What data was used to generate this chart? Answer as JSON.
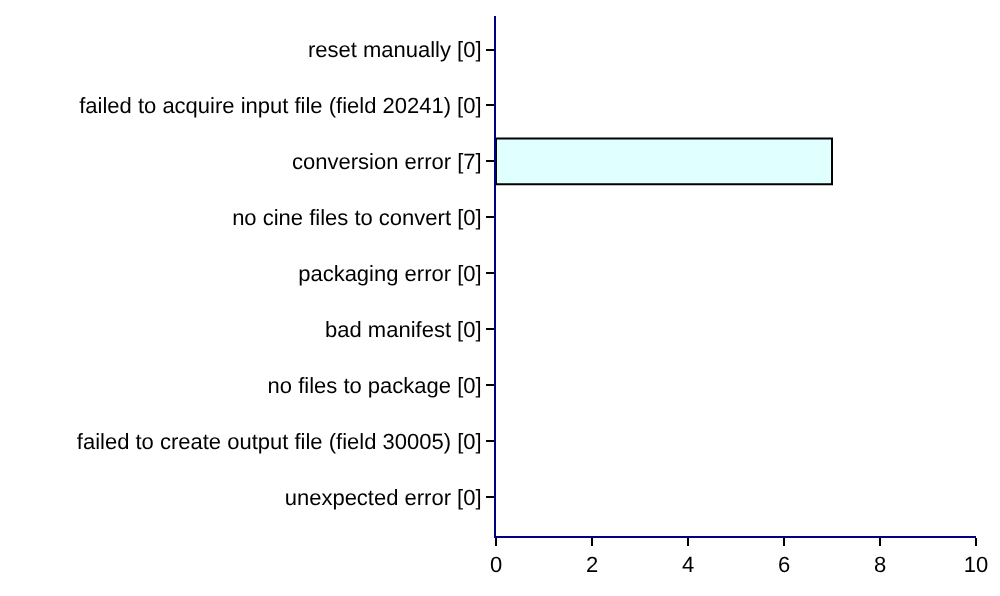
{
  "chart_data": {
    "type": "bar",
    "orientation": "horizontal",
    "categories": [
      "reset manually [0]",
      "failed to acquire input file (field 20241) [0]",
      "conversion error [7]",
      "no cine files to convert [0]",
      "packaging error [0]",
      "bad manifest [0]",
      "no files to package [0]",
      "failed to create output file (field 30005) [0]",
      "unexpected error [0]"
    ],
    "values": [
      0,
      0,
      7,
      0,
      0,
      0,
      0,
      0,
      0
    ],
    "color": "#e0ffff",
    "xlim": [
      0,
      10
    ],
    "xticks": [
      0,
      2,
      4,
      6,
      8,
      10
    ]
  }
}
